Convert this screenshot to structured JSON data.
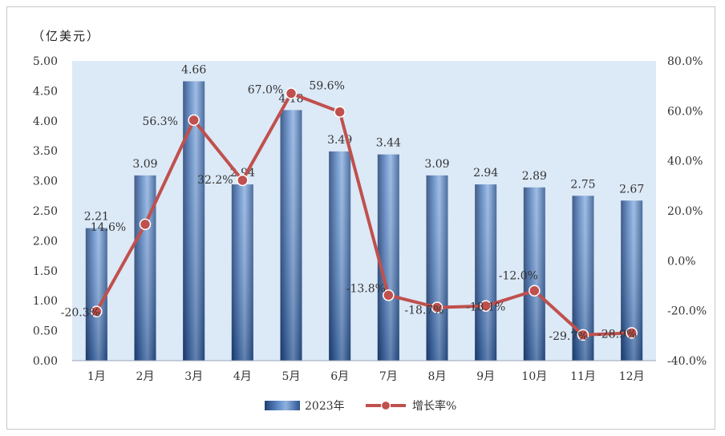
{
  "chart_data": {
    "type": "bar+line",
    "unit_label": "（亿美元）",
    "categories": [
      "1月",
      "2月",
      "3月",
      "4月",
      "5月",
      "6月",
      "7月",
      "8月",
      "9月",
      "10月",
      "11月",
      "12月"
    ],
    "series": [
      {
        "name": "2023年",
        "type": "bar",
        "axis": "left",
        "values": [
          2.21,
          3.09,
          4.66,
          2.94,
          4.18,
          3.49,
          3.44,
          3.09,
          2.94,
          2.89,
          2.75,
          2.67
        ],
        "labels": [
          "2.21",
          "3.09",
          "4.66",
          "2.94",
          "4.18",
          "3.49",
          "3.44",
          "3.09",
          "2.94",
          "2.89",
          "2.75",
          "2.67"
        ],
        "color": "#2e5a9a"
      },
      {
        "name": "增长率%",
        "type": "line",
        "axis": "right",
        "values": [
          -20.3,
          14.6,
          56.3,
          32.2,
          67.0,
          59.6,
          -13.8,
          -18.7,
          -18.1,
          -12.0,
          -29.7,
          -28.9
        ],
        "labels": [
          "-20.3%",
          "14.6%",
          "56.3%",
          "32.2%",
          "67.0%",
          "59.6%",
          "-13.8%",
          "-18.7%",
          "-18.1%",
          "-12.0%",
          "-29.7%",
          "-28.9%"
        ],
        "color": "#c0504d"
      }
    ],
    "y_left": {
      "min": 0,
      "max": 5,
      "ticks": [
        "0.00",
        "0.50",
        "1.00",
        "1.50",
        "2.00",
        "2.50",
        "3.00",
        "3.50",
        "4.00",
        "4.50",
        "5.00"
      ]
    },
    "y_right": {
      "min": -40,
      "max": 80,
      "ticks": [
        "-40.0%",
        "-20.0%",
        "0.0%",
        "20.0%",
        "40.0%",
        "60.0%",
        "80.0%"
      ]
    },
    "grid": false,
    "legend": "bottom-center"
  }
}
